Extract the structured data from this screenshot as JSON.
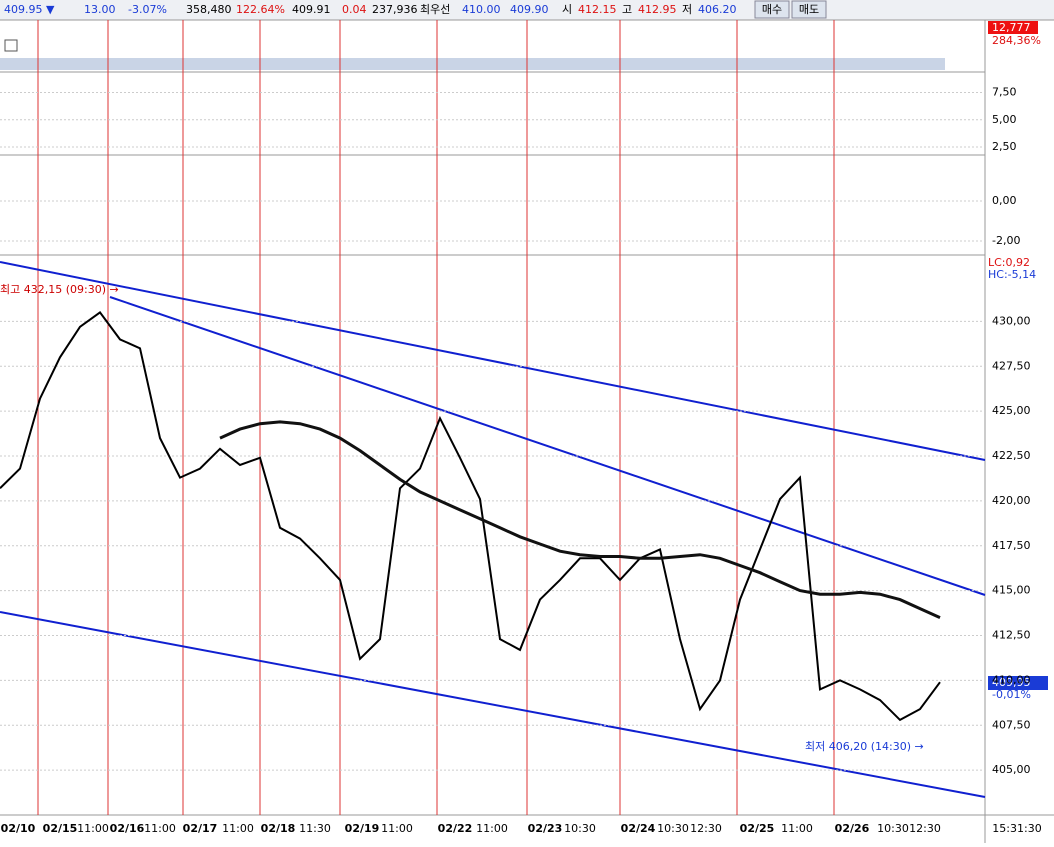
{
  "toolbar": {
    "items": [
      "409.95 ▼",
      "13.00",
      "-3.07%",
      "358,480",
      "122.64%",
      "409.91",
      "0.04",
      "237,936",
      "최우선",
      "410.00",
      "409.90",
      "시",
      "412.15",
      "고",
      "412.95",
      "저",
      "406.20"
    ],
    "buy": "매수",
    "sell": "매도"
  },
  "volume": {
    "last": "12,777",
    "ratio": "284,36%"
  },
  "stochastic": {
    "ylim": [
      1.77,
      9.38
    ],
    "yticks": [
      {
        "value": 7.5,
        "label": "7,50"
      },
      {
        "value": 5,
        "label": "5,00"
      },
      {
        "value": 2.5,
        "label": "2,50"
      }
    ]
  },
  "macd": {
    "ylim": [
      -2.7,
      2.3
    ],
    "yticks": [
      {
        "value": 0,
        "label": "0,00"
      },
      {
        "value": -2,
        "label": "-2,00"
      }
    ]
  },
  "chart_data": {
    "type": "line",
    "ylim": [
      402.5,
      433.7
    ],
    "yticks": [
      {
        "value": 405,
        "label": "405,00"
      },
      {
        "value": 407.5,
        "label": "407,50"
      },
      {
        "value": 410,
        "label": "410,00"
      },
      {
        "value": 412.5,
        "label": "412,50"
      },
      {
        "value": 415,
        "label": "415,00"
      },
      {
        "value": 417.5,
        "label": "417,50"
      },
      {
        "value": 420,
        "label": "420,00"
      },
      {
        "value": 422.5,
        "label": "422,50"
      },
      {
        "value": 425,
        "label": "425,00"
      },
      {
        "value": 427.5,
        "label": "427,50"
      },
      {
        "value": 430,
        "label": "430,00"
      }
    ],
    "series": [
      {
        "color": "#000000",
        "values": [
          420.7,
          421.8,
          425.7,
          428.0,
          429.7,
          430.5,
          429.0,
          428.5,
          423.5,
          421.3,
          421.8,
          422.9,
          422.0,
          422.4,
          418.5,
          417.9,
          416.8,
          415.6,
          411.2,
          412.3,
          420.7,
          421.8,
          424.6,
          422.4,
          420.1,
          412.3,
          411.7,
          414.5,
          415.6,
          416.8,
          416.8,
          415.6,
          416.8,
          417.3,
          412.3,
          408.4,
          410.0,
          414.5,
          417.3,
          420.1,
          421.3,
          409.5,
          410.0,
          409.5,
          408.9,
          407.8,
          408.4,
          409.9
        ]
      },
      {
        "color": "#111111",
        "values": [
          null,
          null,
          null,
          null,
          null,
          null,
          null,
          null,
          null,
          null,
          null,
          423.5,
          424.0,
          424.3,
          424.4,
          424.3,
          424.0,
          423.5,
          422.8,
          422.0,
          421.2,
          420.5,
          420.0,
          419.5,
          419.0,
          418.5,
          418.0,
          417.6,
          417.2,
          417.0,
          416.9,
          416.9,
          416.8,
          416.8,
          416.9,
          417.0,
          416.8,
          416.4,
          416.0,
          415.5,
          415.0,
          414.8,
          414.8,
          414.9,
          414.8,
          414.5,
          414.0,
          413.5
        ]
      }
    ],
    "high_note": "최고 432,15 (09:30) →",
    "low_note": "최저 406,20 (14:30) →",
    "lc": "LC:0,92",
    "hc": "HC:-5,14",
    "last": "409,95",
    "change": "-0,01%"
  },
  "time_axis": {
    "labels": [
      "02/10",
      "02/15",
      "11:00",
      "02/16",
      "11:00",
      "02/17",
      "11:00",
      "02/18",
      "11:30",
      "02/19",
      "11:00",
      "02/22",
      "11:00",
      "02/23",
      "10:30",
      "02/24",
      "10:30",
      "12:30",
      "02/25",
      "11:00",
      "02/26",
      "10:30",
      "12:30"
    ],
    "clock": "15:31:30"
  }
}
